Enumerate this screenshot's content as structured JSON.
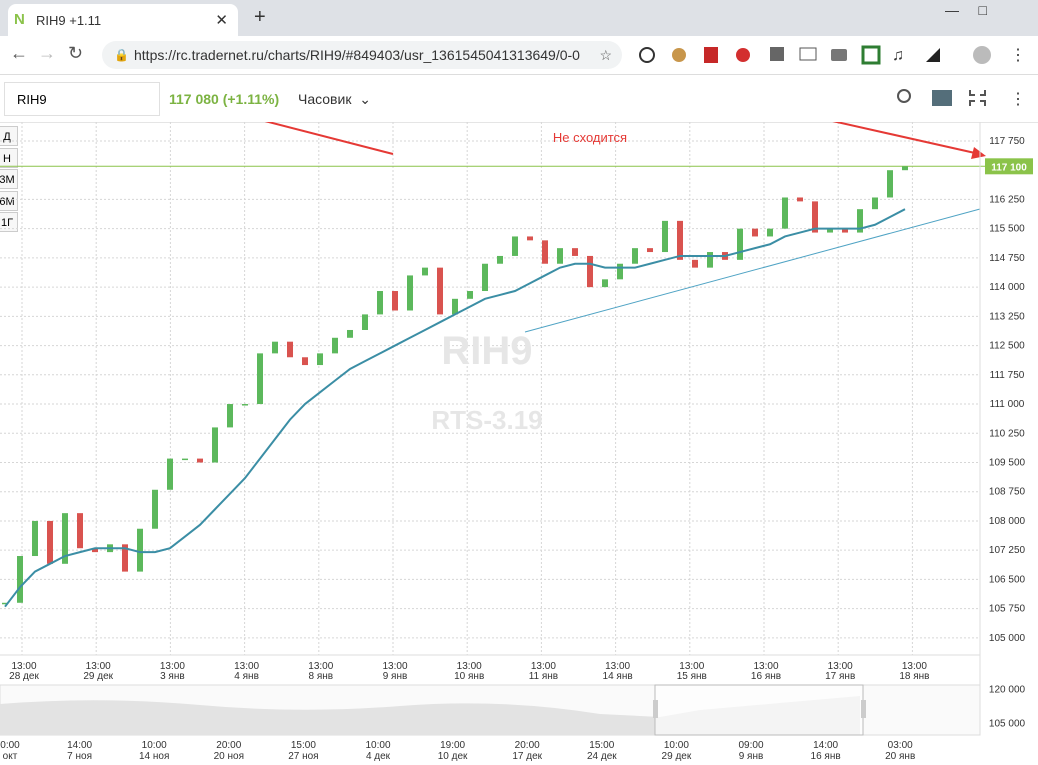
{
  "browser": {
    "tab_title": "RIH9 +1.11",
    "url": "https://rc.tradernet.ru/charts/RIH9/#849403/usr_1361545041313649/0-0"
  },
  "header": {
    "symbol": "RIH9",
    "price": "117 080 (+1.11%)",
    "timeframe": "Часовик"
  },
  "periods": [
    "Д",
    "Н",
    "3М",
    "6М",
    "1Г"
  ],
  "chart": {
    "type": "candlestick",
    "watermark": "RIH9",
    "watermark_sub": "RTS-3.19",
    "annotation": "Не сходится",
    "last_price": {
      "value": 117100,
      "label": "117 100"
    },
    "ylim": [
      104560,
      118160
    ],
    "yticks": [
      {
        "value": 105000,
        "label": "105 000"
      },
      {
        "value": 105750,
        "label": "105 750"
      },
      {
        "value": 106500,
        "label": "106 500"
      },
      {
        "value": 107250,
        "label": "107 250"
      },
      {
        "value": 108000,
        "label": "108 000"
      },
      {
        "value": 108750,
        "label": "108 750"
      },
      {
        "value": 109500,
        "label": "109 500"
      },
      {
        "value": 110250,
        "label": "110 250"
      },
      {
        "value": 111000,
        "label": "111 000"
      },
      {
        "value": 111750,
        "label": "111 750"
      },
      {
        "value": 112500,
        "label": "112 500"
      },
      {
        "value": 113250,
        "label": "113 250"
      },
      {
        "value": 114000,
        "label": "114 000"
      },
      {
        "value": 114750,
        "label": "114 750"
      },
      {
        "value": 115500,
        "label": "115 500"
      },
      {
        "value": 116250,
        "label": "116 250"
      },
      {
        "value": 117750,
        "label": "117 750"
      }
    ],
    "x_labels": [
      {
        "time": "13:00",
        "date": "28 дек"
      },
      {
        "time": "13:00",
        "date": "29 дек"
      },
      {
        "time": "13:00",
        "date": "3 янв"
      },
      {
        "time": "13:00",
        "date": "4 янв"
      },
      {
        "time": "13:00",
        "date": "8 янв"
      },
      {
        "time": "13:00",
        "date": "9 янв"
      },
      {
        "time": "13:00",
        "date": "10 янв"
      },
      {
        "time": "13:00",
        "date": "11 янв"
      },
      {
        "time": "13:00",
        "date": "14 янв"
      },
      {
        "time": "13:00",
        "date": "15 янв"
      },
      {
        "time": "13:00",
        "date": "16 янв"
      },
      {
        "time": "13:00",
        "date": "17 янв"
      },
      {
        "time": "13:00",
        "date": "18 янв"
      }
    ],
    "close": [
      105900,
      107100,
      108000,
      106900,
      108200,
      107300,
      107200,
      107400,
      106700,
      107800,
      108800,
      109600,
      109600,
      109500,
      110400,
      111000,
      111000,
      112300,
      112600,
      112200,
      112000,
      112300,
      112700,
      112900,
      113300,
      113900,
      113400,
      114300,
      114500,
      113300,
      113700,
      113900,
      114600,
      114800,
      115300,
      115200,
      114600,
      115000,
      114800,
      114000,
      114200,
      114600,
      115000,
      114900,
      115700,
      114700,
      114500,
      114900,
      114700,
      115500,
      115300,
      115500,
      116300,
      116200,
      115400,
      115500,
      115400,
      116000,
      116300,
      117000,
      117100
    ],
    "ma": [
      105800,
      106300,
      106700,
      106900,
      107100,
      107200,
      107300,
      107300,
      107300,
      107200,
      107200,
      107300,
      107600,
      107900,
      108300,
      108700,
      109100,
      109600,
      110100,
      110600,
      111000,
      111300,
      111600,
      111900,
      112100,
      112300,
      112500,
      112700,
      112900,
      113100,
      113300,
      113500,
      113700,
      113800,
      113900,
      114100,
      114300,
      114500,
      114600,
      114600,
      114500,
      114500,
      114500,
      114600,
      114700,
      114800,
      114800,
      114800,
      114800,
      114900,
      115000,
      115100,
      115300,
      115400,
      115500,
      115500,
      115500,
      115500,
      115600,
      115800,
      116000
    ],
    "up_color": "#5cb85c",
    "down_color": "#d9534f",
    "ma_color": "#3b8ea5",
    "price_color": "#8bc34a"
  },
  "navigator": {
    "yticks": [
      {
        "value": 120000,
        "label": "120 000"
      },
      {
        "value": 105000,
        "label": "105 000"
      }
    ],
    "x_labels": [
      {
        "time": "0:00",
        "date": "окт"
      },
      {
        "time": "14:00",
        "date": "7 ноя"
      },
      {
        "time": "10:00",
        "date": "14 ноя"
      },
      {
        "time": "20:00",
        "date": "20 ноя"
      },
      {
        "time": "15:00",
        "date": "27 ноя"
      },
      {
        "time": "10:00",
        "date": "4 дек"
      },
      {
        "time": "19:00",
        "date": "10 дек"
      },
      {
        "time": "20:00",
        "date": "17 дек"
      },
      {
        "time": "15:00",
        "date": "24 дек"
      },
      {
        "time": "10:00",
        "date": "29 дек"
      },
      {
        "time": "09:00",
        "date": "9 янв"
      },
      {
        "time": "14:00",
        "date": "16 янв"
      },
      {
        "time": "03:00",
        "date": "20 янв"
      }
    ]
  }
}
